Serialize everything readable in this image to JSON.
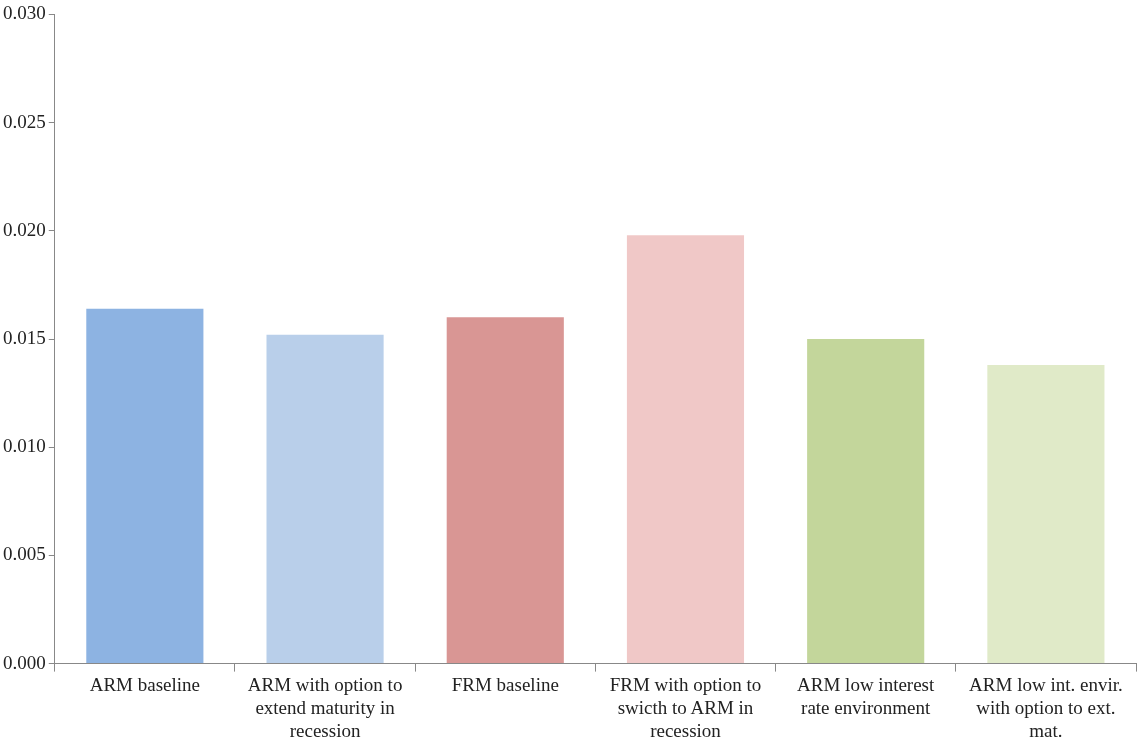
{
  "chart_data": {
    "type": "bar",
    "categories": [
      "ARM baseline",
      "ARM with option to extend maturity in recession",
      "FRM baseline",
      "FRM with option to swicth to ARM in recession",
      "ARM low interest rate environment",
      "ARM low int. envir. with option to ext. mat."
    ],
    "values": [
      0.0164,
      0.0152,
      0.016,
      0.0198,
      0.015,
      0.0138
    ],
    "colors": [
      "#8db3e2",
      "#b9cfea",
      "#d99694",
      "#f0c8c7",
      "#c3d69b",
      "#e0eac8"
    ],
    "ylim": [
      0,
      0.03
    ],
    "yticks": [
      {
        "value": 0,
        "label": "0.000"
      },
      {
        "value": 0.005,
        "label": "0.005"
      },
      {
        "value": 0.01,
        "label": "0.010"
      },
      {
        "value": 0.015,
        "label": "0.015"
      },
      {
        "value": 0.02,
        "label": "0.020"
      },
      {
        "value": 0.025,
        "label": "0.025"
      },
      {
        "value": 0.03,
        "label": "0.030"
      }
    ],
    "grid": false,
    "legend": false
  }
}
